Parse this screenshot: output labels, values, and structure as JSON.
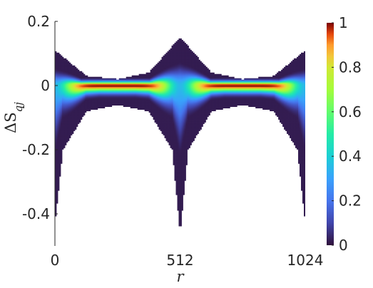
{
  "chart_data": {
    "type": "heatmap",
    "title": "",
    "xlabel": "r",
    "ylabel_symbol": "ΔS",
    "ylabel_subscript": "qj",
    "x_range": [
      0,
      1024
    ],
    "y_range": [
      -0.5,
      0.2
    ],
    "x_ticks": [
      0,
      512,
      1024
    ],
    "x_tick_labels": [
      "0",
      "512",
      "1024"
    ],
    "y_ticks": [
      0.2,
      0,
      -0.2,
      -0.4
    ],
    "y_tick_labels": [
      "0.2",
      "0",
      "-0.2",
      "-0.4"
    ],
    "colorbar": {
      "range": [
        0,
        1
      ],
      "ticks": [
        0,
        0.2,
        0.4,
        0.6,
        0.8,
        1
      ],
      "tick_labels": [
        "0",
        "0.2",
        "0.4",
        "0.6",
        "0.8",
        "1"
      ],
      "colormap": "turbo"
    },
    "density_profile": {
      "center_y": 0,
      "core_band_half_width": 0.012,
      "core_gap_x": [
        0,
        512,
        1024
      ],
      "upper_envelope": [
        {
          "x": 0,
          "y": 0.11
        },
        {
          "x": 128,
          "y": 0.03
        },
        {
          "x": 256,
          "y": 0.02
        },
        {
          "x": 384,
          "y": 0.04
        },
        {
          "x": 512,
          "y": 0.15
        },
        {
          "x": 640,
          "y": 0.04
        },
        {
          "x": 768,
          "y": 0.02
        },
        {
          "x": 896,
          "y": 0.03
        },
        {
          "x": 1024,
          "y": 0.11
        }
      ],
      "lower_envelope": [
        {
          "x": 0,
          "y": -0.43
        },
        {
          "x": 32,
          "y": -0.2
        },
        {
          "x": 128,
          "y": -0.08
        },
        {
          "x": 256,
          "y": -0.06
        },
        {
          "x": 384,
          "y": -0.08
        },
        {
          "x": 480,
          "y": -0.2
        },
        {
          "x": 512,
          "y": -0.46
        },
        {
          "x": 544,
          "y": -0.2
        },
        {
          "x": 640,
          "y": -0.08
        },
        {
          "x": 768,
          "y": -0.06
        },
        {
          "x": 896,
          "y": -0.08
        },
        {
          "x": 992,
          "y": -0.2
        },
        {
          "x": 1024,
          "y": -0.43
        }
      ]
    }
  }
}
